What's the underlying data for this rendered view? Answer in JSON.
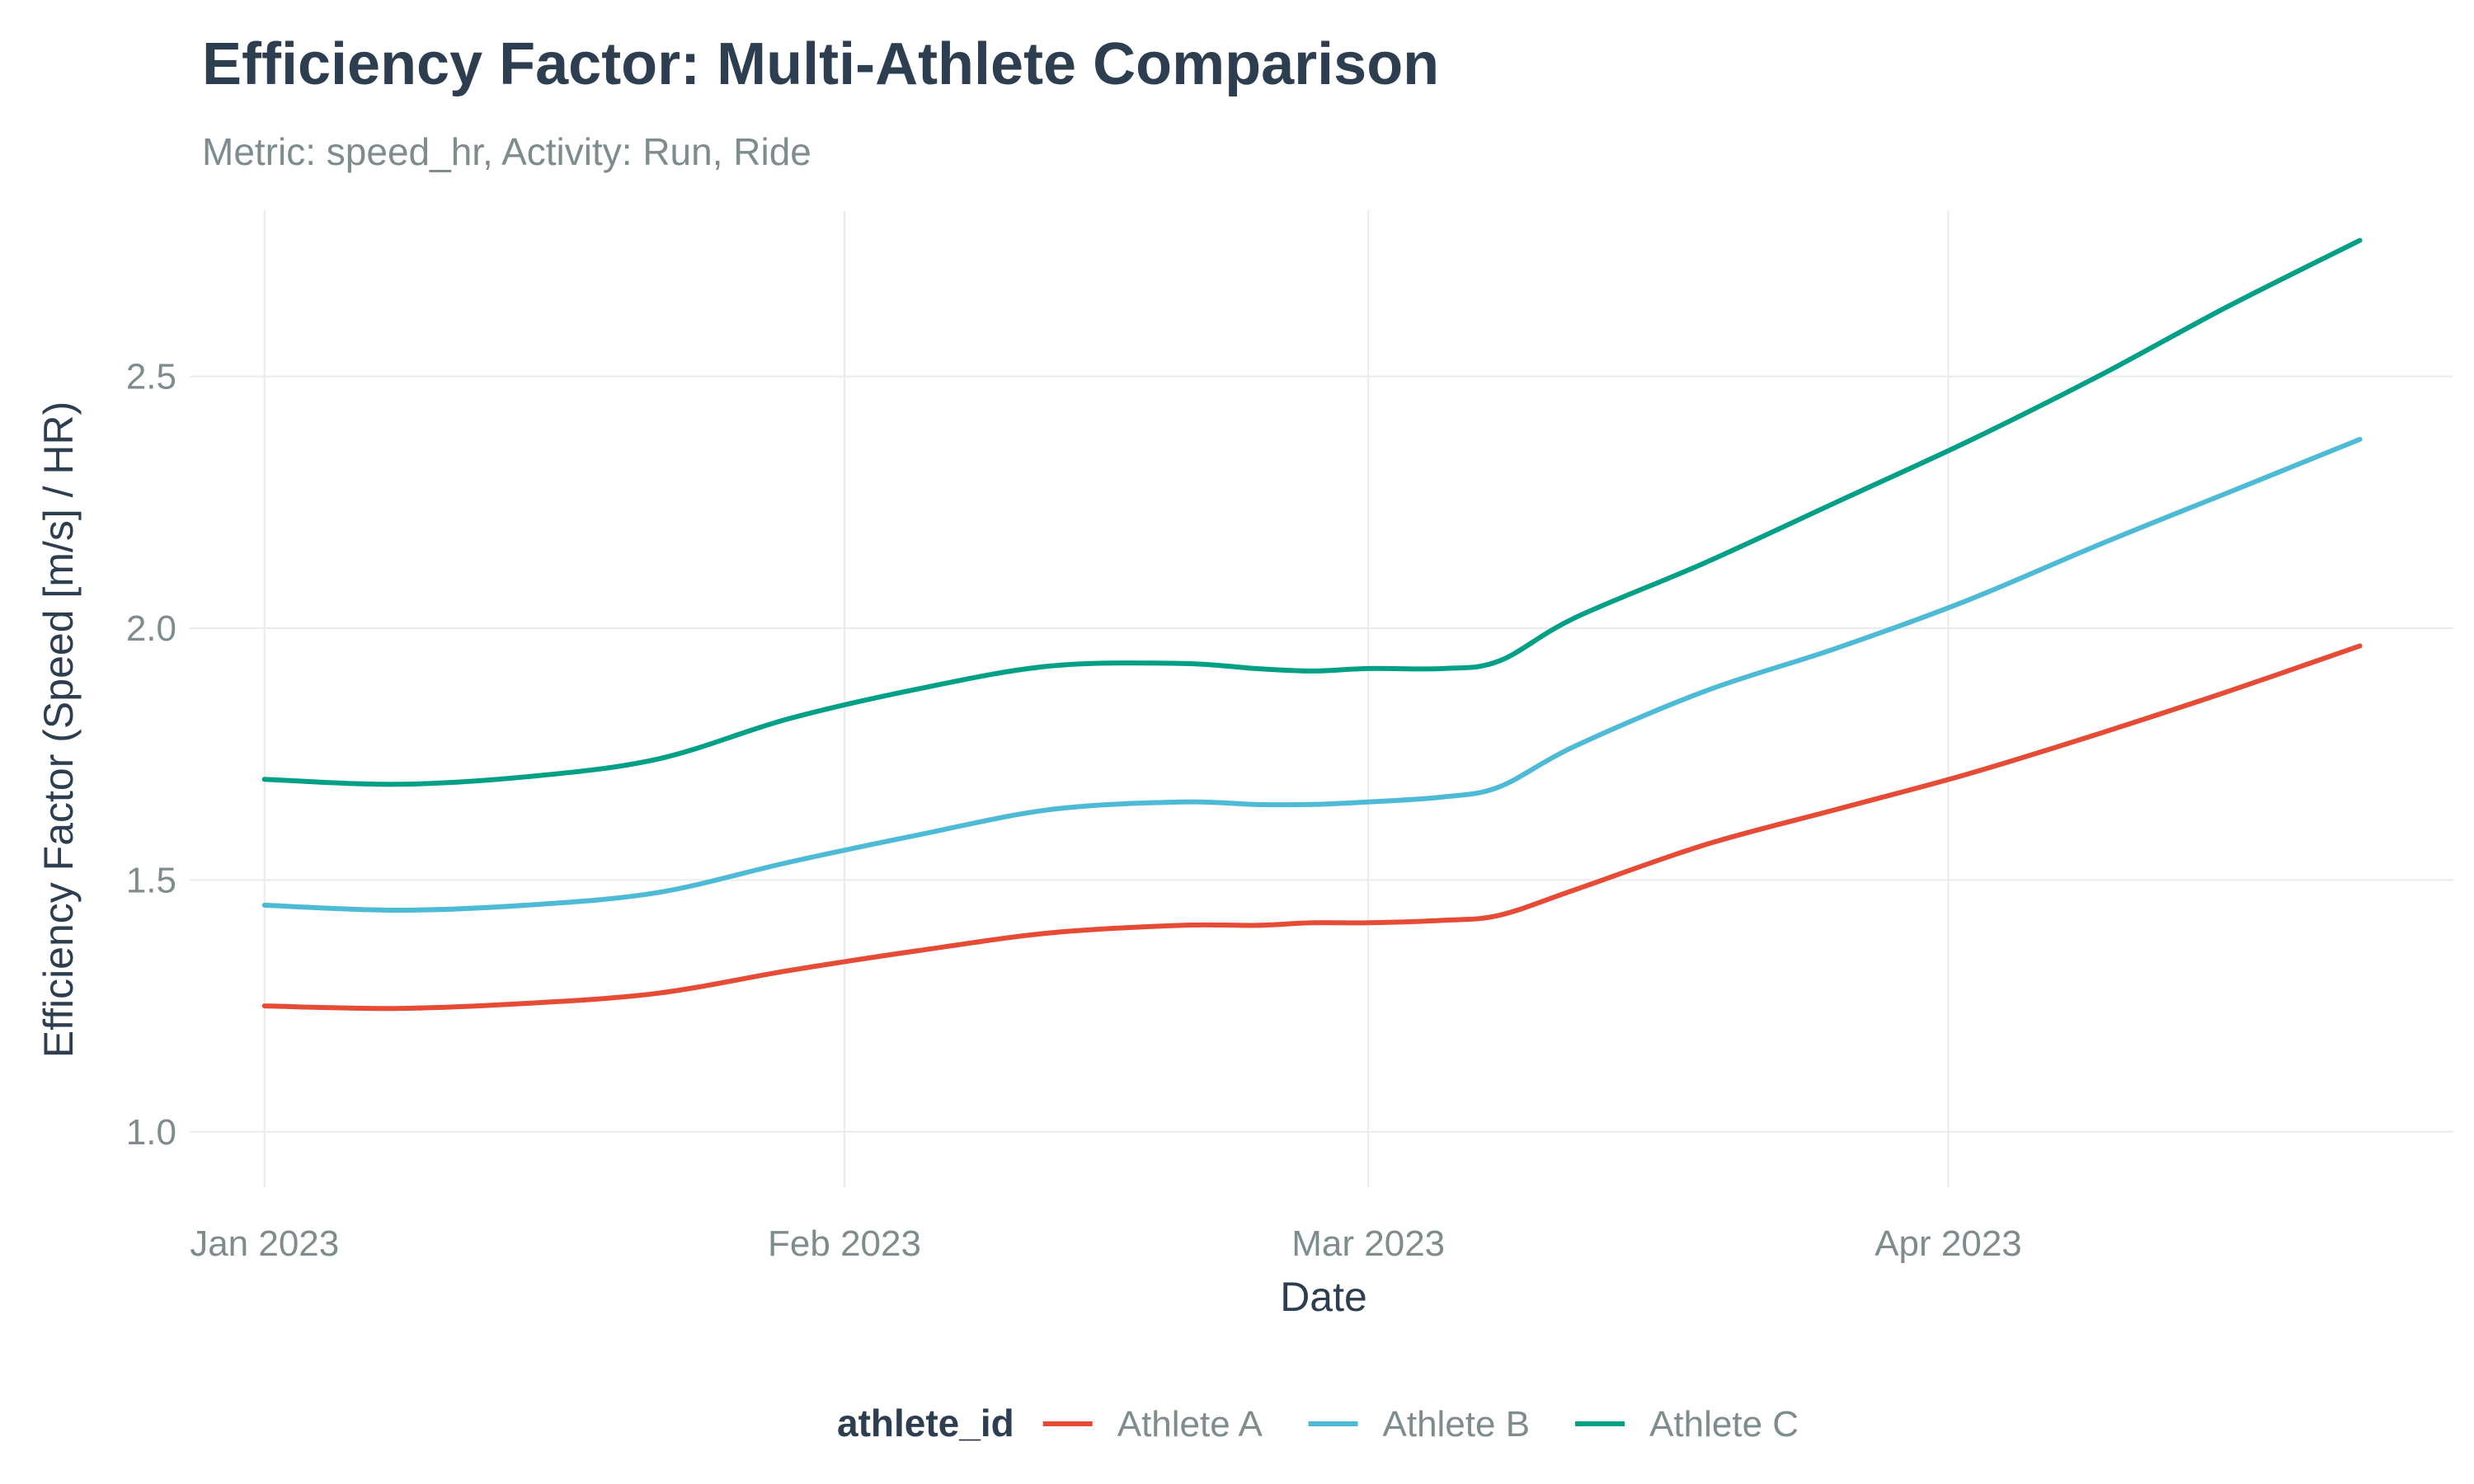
{
  "chart_data": {
    "type": "line",
    "title": "Efficiency Factor: Multi-Athlete Comparison",
    "subtitle": "Metric: speed_hr, Activity: Run, Ride",
    "xlabel": "Date",
    "ylabel": "Efficiency Factor (Speed [m/s] / HR)",
    "xlim": [
      "2022-12-28",
      "2023-04-28"
    ],
    "ylim": [
      0.89,
      2.83
    ],
    "x_ticks": [
      "2023-01-01",
      "2023-02-01",
      "2023-03-01",
      "2023-04-01"
    ],
    "x_tick_labels": [
      "Jan 2023",
      "Feb 2023",
      "Mar 2023",
      "Apr 2023"
    ],
    "y_ticks": [
      1.0,
      1.5,
      2.0,
      2.5
    ],
    "y_tick_labels": [
      "1.0",
      "1.5",
      "2.0",
      "2.5"
    ],
    "grid": true,
    "legend": {
      "title": "athlete_id",
      "position": "bottom"
    },
    "x": [
      "2023-01-01",
      "2023-01-08",
      "2023-01-15",
      "2023-01-22",
      "2023-01-29",
      "2023-02-05",
      "2023-02-12",
      "2023-02-19",
      "2023-02-23",
      "2023-02-26",
      "2023-03-01",
      "2023-03-05",
      "2023-03-08",
      "2023-03-12",
      "2023-03-19",
      "2023-03-26",
      "2023-04-02",
      "2023-04-09",
      "2023-04-16",
      "2023-04-23"
    ],
    "series": [
      {
        "name": "Athlete A",
        "color": "#e64b35",
        "values": [
          1.25,
          1.245,
          1.255,
          1.275,
          1.32,
          1.36,
          1.395,
          1.41,
          1.41,
          1.415,
          1.415,
          1.42,
          1.43,
          1.48,
          1.57,
          1.64,
          1.71,
          1.79,
          1.875,
          1.965
        ]
      },
      {
        "name": "Athlete B",
        "color": "#4dbbd5",
        "values": [
          1.45,
          1.44,
          1.45,
          1.475,
          1.535,
          1.59,
          1.64,
          1.655,
          1.65,
          1.65,
          1.655,
          1.665,
          1.685,
          1.765,
          1.875,
          1.96,
          2.055,
          2.165,
          2.27,
          2.375
        ]
      },
      {
        "name": "Athlete C",
        "color": "#00a087",
        "values": [
          1.7,
          1.69,
          1.705,
          1.74,
          1.82,
          1.88,
          1.925,
          1.93,
          1.92,
          1.915,
          1.92,
          1.92,
          1.935,
          2.02,
          2.13,
          2.25,
          2.37,
          2.5,
          2.64,
          2.77
        ]
      }
    ]
  }
}
